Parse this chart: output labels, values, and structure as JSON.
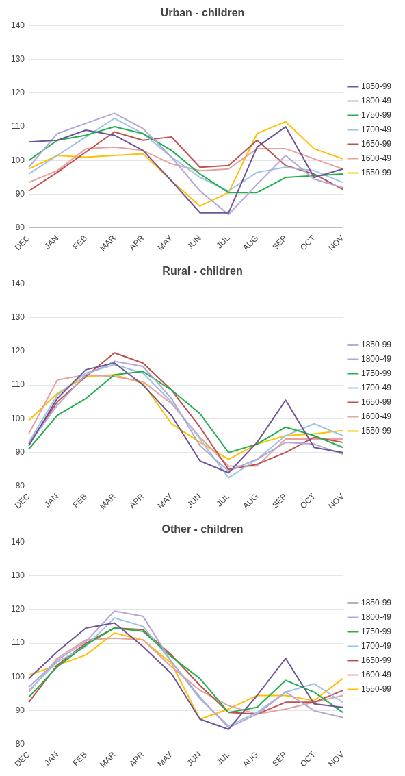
{
  "chart_data": [
    {
      "type": "line",
      "title": "Urban - children",
      "categories": [
        "DEC",
        "JAN",
        "FEB",
        "MAR",
        "APR",
        "MAY",
        "JUN",
        "JUL",
        "AUG",
        "SEP",
        "OCT",
        "NOV"
      ],
      "ylim": [
        80,
        140
      ],
      "yticks": [
        80,
        90,
        100,
        110,
        120,
        130,
        140
      ],
      "grid": "y",
      "legend": "right",
      "marker": "none",
      "series": [
        {
          "name": "1850-99",
          "color": "#6f5597",
          "values": [
            105.5,
            106,
            109,
            107.5,
            103,
            94,
            84.5,
            84.5,
            104,
            110,
            95,
            97.5
          ]
        },
        {
          "name": "1800-49",
          "color": "#b4a7d6",
          "values": [
            98,
            108,
            111,
            114,
            109.5,
            101,
            91,
            84,
            93,
            101.5,
            94.5,
            92
          ]
        },
        {
          "name": "1750-99",
          "color": "#22b04b",
          "values": [
            100,
            106,
            107.5,
            110,
            108,
            103,
            96,
            90.5,
            90.5,
            95,
            95.5,
            96
          ]
        },
        {
          "name": "1700-49",
          "color": "#9dc3e6",
          "values": [
            96,
            101.5,
            107,
            112.5,
            108,
            101,
            95,
            91,
            96.5,
            98,
            97,
            93.5
          ]
        },
        {
          "name": "1650-99",
          "color": "#c0504d",
          "values": [
            91,
            96.5,
            102.5,
            108.5,
            106,
            107,
            98,
            98.5,
            106,
            98.5,
            96,
            91.5
          ]
        },
        {
          "name": "1600-49",
          "color": "#e6a1a1",
          "values": [
            93.5,
            97,
            103.5,
            104,
            103,
            99,
            97,
            97.5,
            103.5,
            103.5,
            100.5,
            97.5
          ]
        },
        {
          "name": "1550-99",
          "color": "#ffc000",
          "values": [
            97.5,
            101.5,
            101,
            101.5,
            102,
            94,
            86.5,
            90.5,
            108,
            111.5,
            103.5,
            100.5
          ]
        }
      ]
    },
    {
      "type": "line",
      "title": "Rural - children",
      "categories": [
        "DEC",
        "JAN",
        "FEB",
        "MAR",
        "APR",
        "MAY",
        "JUN",
        "JUL",
        "AUG",
        "SEP",
        "OCT",
        "NOV"
      ],
      "ylim": [
        80,
        140
      ],
      "yticks": [
        80,
        90,
        100,
        110,
        120,
        130,
        140
      ],
      "grid": "y",
      "legend": "right",
      "marker": "none",
      "series": [
        {
          "name": "1850-99",
          "color": "#6f5597",
          "values": [
            92,
            106,
            114.5,
            116.5,
            110,
            101,
            87.5,
            84,
            93,
            105.5,
            91.5,
            90
          ]
        },
        {
          "name": "1800-49",
          "color": "#b4a7d6",
          "values": [
            92.5,
            104,
            113,
            117,
            115.5,
            106,
            92,
            84.5,
            88,
            93,
            92.5,
            89.5
          ]
        },
        {
          "name": "1750-99",
          "color": "#22b04b",
          "values": [
            91,
            101,
            106,
            113,
            114,
            108.5,
            101.5,
            90,
            92.5,
            97.5,
            95,
            91.5
          ]
        },
        {
          "name": "1700-49",
          "color": "#9dc3e6",
          "values": [
            93,
            107,
            113.5,
            116,
            113.5,
            105,
            94,
            82.5,
            88,
            95,
            98.5,
            95
          ]
        },
        {
          "name": "1650-99",
          "color": "#c0504d",
          "values": [
            92.5,
            105,
            112.5,
            119.5,
            116.5,
            108.5,
            97.5,
            85,
            86.5,
            90,
            94.5,
            93
          ]
        },
        {
          "name": "1600-49",
          "color": "#e6a1a1",
          "values": [
            95.5,
            111.5,
            113,
            112.5,
            111,
            104.5,
            94.5,
            86,
            86,
            94,
            94,
            94
          ]
        },
        {
          "name": "1550-99",
          "color": "#ffc000",
          "values": [
            99.5,
            107.5,
            112.5,
            113,
            110.5,
            98.5,
            93,
            88,
            92.5,
            95,
            95.5,
            96.5
          ]
        }
      ]
    },
    {
      "type": "line",
      "title": "Other - children",
      "categories": [
        "DEC",
        "JAN",
        "FEB",
        "MAR",
        "APR",
        "MAY",
        "JUN",
        "JUL",
        "AUG",
        "SEP",
        "OCT",
        "NOV"
      ],
      "ylim": [
        80,
        140
      ],
      "yticks": [
        80,
        90,
        100,
        110,
        120,
        130,
        140
      ],
      "grid": "y",
      "legend": "right",
      "marker": "none",
      "series": [
        {
          "name": "1850-99",
          "color": "#6f5597",
          "values": [
            99.5,
            107.5,
            114.5,
            116,
            109,
            101,
            87.5,
            84.5,
            94.5,
            105.5,
            92,
            91
          ]
        },
        {
          "name": "1800-49",
          "color": "#b4a7d6",
          "values": [
            97,
            105,
            110.5,
            119.5,
            118,
            104.5,
            94,
            85,
            89,
            95.5,
            90,
            88
          ]
        },
        {
          "name": "1750-99",
          "color": "#22b04b",
          "values": [
            94,
            103,
            109.5,
            114.5,
            113.5,
            106,
            99.5,
            89.5,
            91,
            99,
            95.5,
            89.5
          ]
        },
        {
          "name": "1700-49",
          "color": "#9dc3e6",
          "values": [
            96,
            104.5,
            109,
            117.5,
            115,
            104.5,
            93.5,
            85.5,
            89.5,
            95.5,
            98,
            92.5
          ]
        },
        {
          "name": "1650-99",
          "color": "#c0504d",
          "values": [
            92.5,
            103.5,
            110,
            114.5,
            114,
            106.5,
            97.5,
            89.5,
            89,
            92.5,
            92.5,
            96
          ]
        },
        {
          "name": "1600-49",
          "color": "#e6a1a1",
          "values": [
            95.5,
            105.5,
            111,
            111.5,
            111,
            103,
            96,
            91.5,
            89,
            90.5,
            92.5,
            94.5
          ]
        },
        {
          "name": "1550-99",
          "color": "#ffc000",
          "values": [
            100.5,
            103.5,
            106.5,
            113,
            111,
            104,
            87.5,
            90.5,
            94.5,
            94.5,
            93,
            99.5
          ]
        }
      ]
    }
  ]
}
